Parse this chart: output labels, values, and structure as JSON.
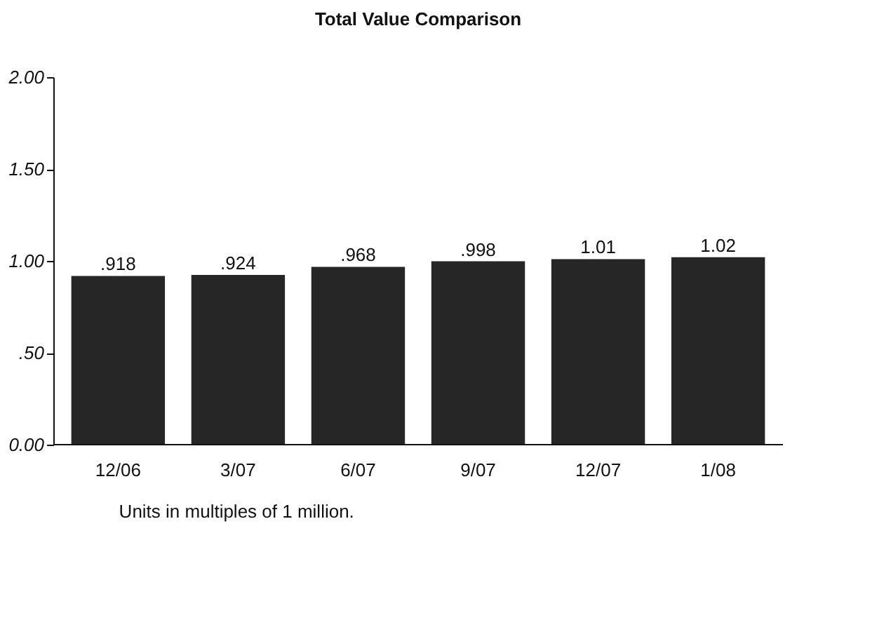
{
  "chart_data": {
    "type": "bar",
    "title": "Total Value Comparison",
    "categories": [
      "12/06",
      "3/07",
      "6/07",
      "9/07",
      "12/07",
      "1/08"
    ],
    "values": [
      0.918,
      0.924,
      0.968,
      0.998,
      1.01,
      1.02
    ],
    "value_labels": [
      ".918",
      ".924",
      ".968",
      ".998",
      "1.01",
      "1.02"
    ],
    "color": "#262626",
    "ylim": [
      0,
      2
    ],
    "yticks": [
      {
        "value": 0,
        "label": "0.00"
      },
      {
        "value": 0.5,
        "label": ".50"
      },
      {
        "value": 1,
        "label": "1.00"
      },
      {
        "value": 1.5,
        "label": "1.50"
      },
      {
        "value": 2,
        "label": "2.00"
      }
    ],
    "grid": false,
    "annotations": [
      "Units in multiples of 1 million."
    ]
  }
}
